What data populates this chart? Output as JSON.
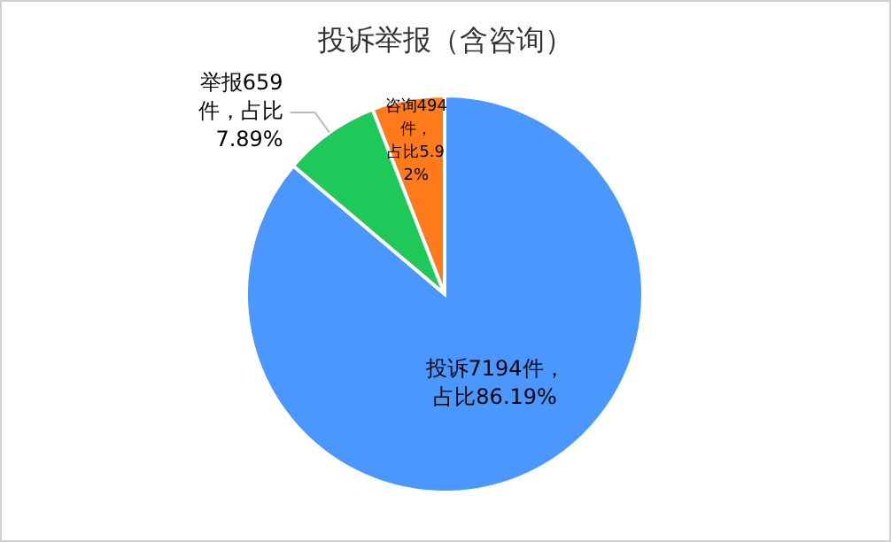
{
  "chart_data": {
    "type": "pie",
    "title": "投诉举报（含咨询）",
    "categories": [
      "投诉",
      "举报",
      "咨询"
    ],
    "values": [
      7194,
      659,
      494
    ],
    "colors": [
      "#4a98ff",
      "#1ec95a",
      "#ff7a1a"
    ],
    "value_labels": [
      "7194件，占比86.19%",
      "659件，占比7.89%",
      "494件，占比5.92%"
    ]
  }
}
